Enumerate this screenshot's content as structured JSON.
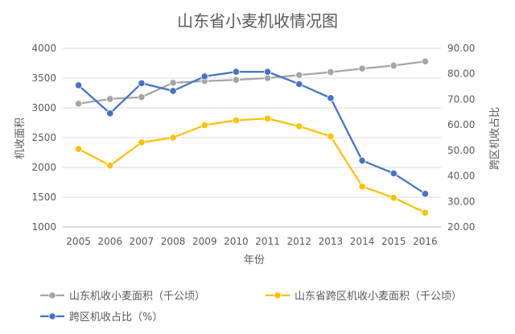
{
  "chart_data": {
    "type": "line",
    "title": "山东省小麦机收情况图",
    "xlabel": "年份",
    "ylabel_left": "机收面积",
    "ylabel_right": "跨区机收占比",
    "categories": [
      "2005",
      "2006",
      "2007",
      "2008",
      "2009",
      "2010",
      "2011",
      "2012",
      "2013",
      "2014",
      "2015",
      "2016"
    ],
    "y_left": {
      "min": 1000,
      "max": 4000,
      "ticks": [
        1000,
        1500,
        2000,
        2500,
        3000,
        3500,
        4000
      ]
    },
    "y_right": {
      "min": 20,
      "max": 90,
      "ticks": [
        "20.00",
        "30.00",
        "40.00",
        "50.00",
        "60.00",
        "70.00",
        "80.00",
        "90.00"
      ]
    },
    "grid": true,
    "legend_position": "bottom",
    "series": [
      {
        "name": "山东机收小麦面积（千公顷）",
        "axis": "left",
        "color": "#a5a5a5",
        "values": [
          3070,
          3150,
          3180,
          3420,
          3450,
          3470,
          3500,
          3550,
          3600,
          3660,
          3710,
          3780
        ]
      },
      {
        "name": "山东省跨区机收小麦面积（千公顷）",
        "axis": "left",
        "color": "#ffc000",
        "values": [
          2310,
          2030,
          2420,
          2500,
          2710,
          2790,
          2820,
          2690,
          2520,
          1680,
          1490,
          1240
        ]
      },
      {
        "name": "跨区机收占比（%）",
        "axis": "right",
        "color": "#4472c4",
        "values": [
          75.5,
          64.5,
          76.3,
          73.3,
          79.0,
          80.8,
          80.8,
          76.0,
          70.5,
          46.0,
          41.0,
          33.0
        ]
      }
    ]
  }
}
